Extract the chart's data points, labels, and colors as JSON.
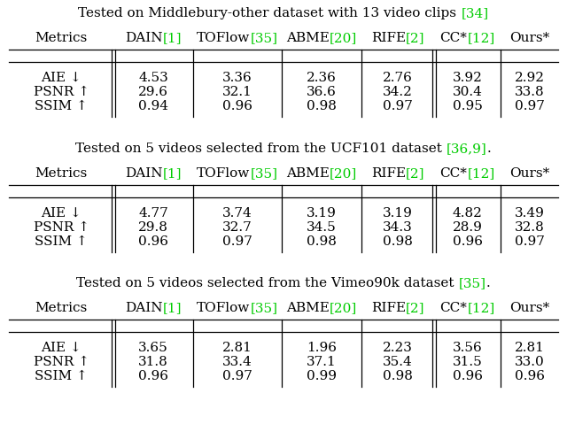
{
  "title1_parts": [
    {
      "text": "Tested on Middlebury-other dataset with 13 video clips ",
      "color": "black"
    },
    {
      "text": "[34]",
      "color": "#00cc00"
    }
  ],
  "title2_parts": [
    {
      "text": "Tested on 5 videos selected from the UCF101 dataset ",
      "color": "black"
    },
    {
      "text": "[36,9]",
      "color": "#00cc00"
    },
    {
      "text": ".",
      "color": "black"
    }
  ],
  "title3_parts": [
    {
      "text": "Tested on 5 videos selected from the Vimeo90k dataset ",
      "color": "black"
    },
    {
      "text": "[35]",
      "color": "#00cc00"
    },
    {
      "text": ".",
      "color": "black"
    }
  ],
  "col_headers": [
    [
      {
        "text": "Metrics",
        "color": "black"
      }
    ],
    [
      {
        "text": "DAIN",
        "color": "black"
      },
      {
        "text": "[1]",
        "color": "#00cc00"
      }
    ],
    [
      {
        "text": "TOFlow",
        "color": "black"
      },
      {
        "text": "[35]",
        "color": "#00cc00"
      }
    ],
    [
      {
        "text": "ABME",
        "color": "black"
      },
      {
        "text": "[20]",
        "color": "#00cc00"
      }
    ],
    [
      {
        "text": "RIFE",
        "color": "black"
      },
      {
        "text": "[2]",
        "color": "#00cc00"
      }
    ],
    [
      {
        "text": "CC*",
        "color": "black"
      },
      {
        "text": "[12]",
        "color": "#00cc00"
      }
    ],
    [
      {
        "text": "Ours*",
        "color": "black"
      }
    ]
  ],
  "row_labels": [
    "AIE ↓",
    "PSNR ↑",
    "SSIM ↑"
  ],
  "table1": [
    [
      "4.53",
      "3.36",
      "2.36",
      "2.76",
      "3.92",
      "2.92"
    ],
    [
      "29.6",
      "32.1",
      "36.6",
      "34.2",
      "30.4",
      "33.8"
    ],
    [
      "0.94",
      "0.96",
      "0.98",
      "0.97",
      "0.95",
      "0.97"
    ]
  ],
  "table2": [
    [
      "4.77",
      "3.74",
      "3.19",
      "3.19",
      "4.82",
      "3.49"
    ],
    [
      "29.8",
      "32.7",
      "34.5",
      "34.3",
      "28.9",
      "32.8"
    ],
    [
      "0.96",
      "0.97",
      "0.98",
      "0.98",
      "0.96",
      "0.97"
    ]
  ],
  "table3": [
    [
      "3.65",
      "2.81",
      "1.96",
      "2.23",
      "3.56",
      "2.81"
    ],
    [
      "31.8",
      "33.4",
      "37.1",
      "35.4",
      "31.5",
      "33.0"
    ],
    [
      "0.96",
      "0.97",
      "0.99",
      "0.98",
      "0.96",
      "0.96"
    ]
  ],
  "font_size": 11,
  "title_font_size": 11
}
